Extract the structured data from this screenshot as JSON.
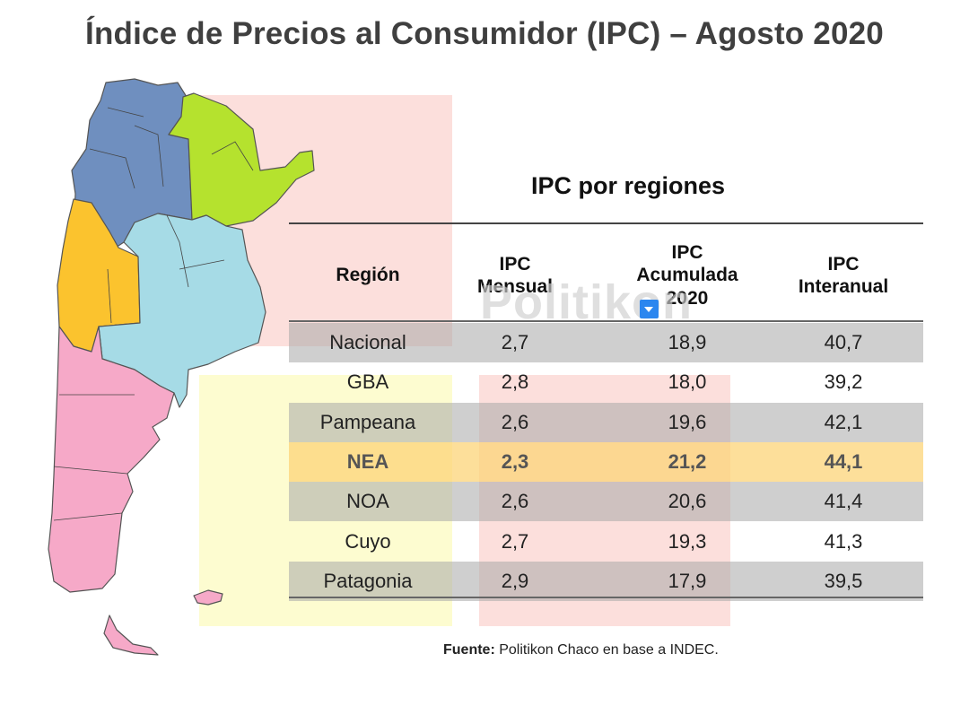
{
  "title": "Índice de Precios al Consumidor (IPC) – Agosto 2020",
  "watermark": "Politikon",
  "table": {
    "title": "IPC por regiones",
    "headers": [
      "Región",
      "IPC\nMensual",
      "IPC\nAcumulada\n2020",
      "IPC\nInteranual"
    ]
  },
  "chart_data": {
    "type": "table",
    "title": "IPC por regiones",
    "columns": [
      "Región",
      "IPC Mensual",
      "IPC Acumulada 2020",
      "IPC Interanual"
    ],
    "rows": [
      {
        "region": "Nacional",
        "mensual": "2,7",
        "acumulada": "18,9",
        "interanual": "40,7"
      },
      {
        "region": "GBA",
        "mensual": "2,8",
        "acumulada": "18,0",
        "interanual": "39,2"
      },
      {
        "region": "Pampeana",
        "mensual": "2,6",
        "acumulada": "19,6",
        "interanual": "42,1"
      },
      {
        "region": "NEA",
        "mensual": "2,3",
        "acumulada": "21,2",
        "interanual": "44,1"
      },
      {
        "region": "NOA",
        "mensual": "2,6",
        "acumulada": "20,6",
        "interanual": "41,4"
      },
      {
        "region": "Cuyo",
        "mensual": "2,7",
        "acumulada": "19,3",
        "interanual": "41,3"
      },
      {
        "region": "Patagonia",
        "mensual": "2,9",
        "acumulada": "17,9",
        "interanual": "39,5"
      }
    ],
    "highlighted_row": "NEA"
  },
  "map_colors": {
    "NOA": "#6f8fbf",
    "NEA": "#b5e22e",
    "Cuyo": "#fbc32e",
    "Pampeana": "#a6dbe6",
    "Patagonia": "#f6a9c8"
  },
  "source": {
    "label": "Fuente:",
    "text": " Politikon Chaco en base a INDEC."
  }
}
